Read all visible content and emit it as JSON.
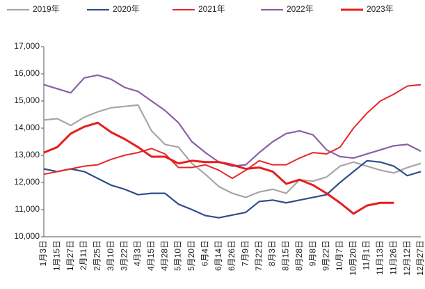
{
  "chart_data": {
    "type": "line",
    "categories": [
      "1月3日",
      "1月15日",
      "1月27日",
      "2月11日",
      "2月25日",
      "3月10日",
      "3月22日",
      "4月3日",
      "4月15日",
      "4月28日",
      "5月10日",
      "5月20日",
      "6月4日",
      "6月14日",
      "6月26日",
      "7月9日",
      "7月22日",
      "8月3日",
      "8月15日",
      "8月28日",
      "9月8日",
      "9月22日",
      "10月7日",
      "10月20日",
      "11月1日",
      "11月13日",
      "11月26日",
      "12月12日",
      "12月27日"
    ],
    "series": [
      {
        "name": "2019年",
        "color": "#a6a6a6",
        "values": [
          14300,
          14350,
          14100,
          14400,
          14600,
          14750,
          14800,
          14850,
          13900,
          13400,
          13300,
          12700,
          12300,
          11850,
          11600,
          11450,
          11650,
          11750,
          11600,
          12100,
          12050,
          12200,
          12600,
          12750,
          12600,
          12450,
          12350,
          12550,
          12700
        ]
      },
      {
        "name": "2020年",
        "color": "#2e4d8a",
        "values": [
          12500,
          12400,
          12500,
          12400,
          12150,
          11900,
          11750,
          11550,
          11600,
          11600,
          11200,
          11000,
          10780,
          10700,
          10800,
          10900,
          11300,
          11350,
          11250,
          11350,
          11450,
          11550,
          12000,
          12400,
          12800,
          12750,
          12600,
          12250,
          12400
        ]
      },
      {
        "name": "2021年",
        "color": "#e8262a",
        "values": [
          12300,
          12400,
          12500,
          12600,
          12650,
          12850,
          13000,
          13100,
          13250,
          13050,
          12550,
          12550,
          12650,
          12450,
          12150,
          12450,
          12800,
          12650,
          12650,
          12900,
          13100,
          13050,
          13300,
          14000,
          14550,
          15000,
          15250,
          15550,
          15600
        ]
      },
      {
        "name": "2022年",
        "color": "#8a5fa8",
        "values": [
          15600,
          15450,
          15300,
          15850,
          15950,
          15800,
          15500,
          15350,
          15000,
          14650,
          14200,
          13500,
          13100,
          12750,
          12600,
          12650,
          13100,
          13500,
          13800,
          13900,
          13750,
          13200,
          12950,
          12900,
          13050,
          13200,
          13350,
          13400,
          13150
        ]
      },
      {
        "name": "2023年",
        "color": "#e81c1c",
        "values": [
          13100,
          13300,
          13800,
          14050,
          14200,
          13850,
          13600,
          13300,
          12950,
          12950,
          12700,
          12800,
          12750,
          12750,
          12650,
          12500,
          12550,
          12400,
          11950,
          12100,
          11900,
          11600,
          11250,
          10850,
          11150,
          11250,
          11250,
          null,
          null
        ]
      }
    ],
    "ylim": [
      10000,
      17000
    ],
    "yticks": [
      {
        "value": 10000,
        "label": "10,000"
      },
      {
        "value": 11000,
        "label": "11,000"
      },
      {
        "value": 12000,
        "label": "12,000"
      },
      {
        "value": 13000,
        "label": "13,000"
      },
      {
        "value": 14000,
        "label": "14,000"
      },
      {
        "value": 15000,
        "label": "15,000"
      },
      {
        "value": 16000,
        "label": "16,000"
      },
      {
        "value": 17000,
        "label": "17,000"
      }
    ],
    "grid": false
  }
}
